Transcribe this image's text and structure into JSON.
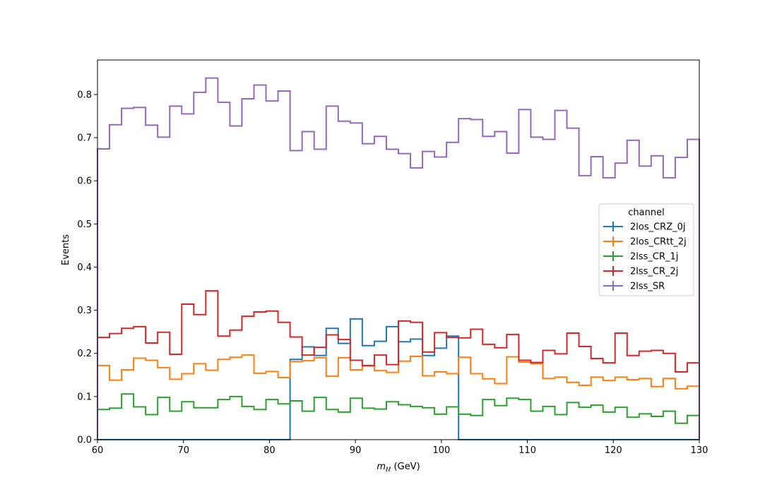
{
  "chart_data": {
    "type": "line",
    "style": "step-histogram",
    "xlabel_main": "m",
    "xlabel_sub": "ℓℓ",
    "xlabel_rest": " (GeV)",
    "ylabel": "Events",
    "xlim": [
      60,
      130
    ],
    "ylim": [
      0,
      0.88
    ],
    "xticks": [
      "60",
      "70",
      "80",
      "90",
      "100",
      "110",
      "120",
      "130"
    ],
    "yticks": [
      "0.0",
      "0.1",
      "0.2",
      "0.3",
      "0.4",
      "0.5",
      "0.6",
      "0.7",
      "0.8"
    ],
    "bin_start": 60,
    "bin_width": 1.4,
    "legend": {
      "title": "channel",
      "position": "center-right"
    },
    "grid": false,
    "series": [
      {
        "name": "2los_CRZ_0j",
        "color": "#1f77b4",
        "values": [
          0,
          0,
          0,
          0,
          0,
          0,
          0,
          0,
          0,
          0,
          0,
          0,
          0,
          0,
          0,
          0,
          0.186,
          0.215,
          0.195,
          0.258,
          0.223,
          0.28,
          0.218,
          0.228,
          0.262,
          0.227,
          0.233,
          0.195,
          0.212,
          0.24,
          0,
          0,
          0,
          0,
          0,
          0,
          0,
          0,
          0,
          0,
          0,
          0,
          0,
          0,
          0,
          0,
          0,
          0,
          0,
          0
        ]
      },
      {
        "name": "2los_CRtt_2j",
        "color": "#ff7f0e",
        "values": [
          0.172,
          0.138,
          0.162,
          0.189,
          0.184,
          0.167,
          0.14,
          0.153,
          0.176,
          0.161,
          0.186,
          0.191,
          0.196,
          0.154,
          0.158,
          0.144,
          0.181,
          0.183,
          0.19,
          0.147,
          0.19,
          0.162,
          0.171,
          0.16,
          0.156,
          0.182,
          0.193,
          0.148,
          0.157,
          0.153,
          0.191,
          0.153,
          0.141,
          0.13,
          0.192,
          0.18,
          0.176,
          0.142,
          0.145,
          0.133,
          0.126,
          0.145,
          0.137,
          0.145,
          0.139,
          0.142,
          0.123,
          0.142,
          0.118,
          0.124
        ]
      },
      {
        "name": "2lss_CR_1j",
        "color": "#2ca02c",
        "values": [
          0.07,
          0.073,
          0.106,
          0.076,
          0.058,
          0.098,
          0.066,
          0.088,
          0.074,
          0.074,
          0.093,
          0.1,
          0.077,
          0.07,
          0.093,
          0.083,
          0.09,
          0.066,
          0.098,
          0.07,
          0.064,
          0.096,
          0.073,
          0.071,
          0.088,
          0.081,
          0.077,
          0.074,
          0.059,
          0.076,
          0.059,
          0.056,
          0.093,
          0.079,
          0.096,
          0.093,
          0.066,
          0.077,
          0.058,
          0.086,
          0.075,
          0.08,
          0.064,
          0.075,
          0.052,
          0.06,
          0.054,
          0.066,
          0.038,
          0.056
        ]
      },
      {
        "name": "2lss_CR_2j",
        "color": "#d62728",
        "values": [
          0.237,
          0.246,
          0.258,
          0.262,
          0.224,
          0.249,
          0.198,
          0.314,
          0.29,
          0.345,
          0.24,
          0.254,
          0.286,
          0.296,
          0.298,
          0.272,
          0.238,
          0.196,
          0.214,
          0.243,
          0.232,
          0.184,
          0.172,
          0.196,
          0.174,
          0.275,
          0.272,
          0.203,
          0.248,
          0.237,
          0.236,
          0.256,
          0.221,
          0.213,
          0.244,
          0.184,
          0.179,
          0.207,
          0.199,
          0.247,
          0.216,
          0.188,
          0.178,
          0.247,
          0.195,
          0.205,
          0.207,
          0.2,
          0.157,
          0.178
        ]
      },
      {
        "name": "2lss_SR",
        "color": "#9467bd",
        "values": [
          0.674,
          0.73,
          0.768,
          0.77,
          0.729,
          0.701,
          0.773,
          0.755,
          0.805,
          0.838,
          0.782,
          0.727,
          0.79,
          0.822,
          0.785,
          0.808,
          0.67,
          0.714,
          0.673,
          0.773,
          0.738,
          0.734,
          0.686,
          0.703,
          0.673,
          0.663,
          0.63,
          0.668,
          0.655,
          0.689,
          0.744,
          0.742,
          0.703,
          0.714,
          0.664,
          0.765,
          0.701,
          0.696,
          0.763,
          0.722,
          0.612,
          0.656,
          0.607,
          0.641,
          0.694,
          0.634,
          0.658,
          0.607,
          0.654,
          0.696
        ]
      }
    ]
  }
}
